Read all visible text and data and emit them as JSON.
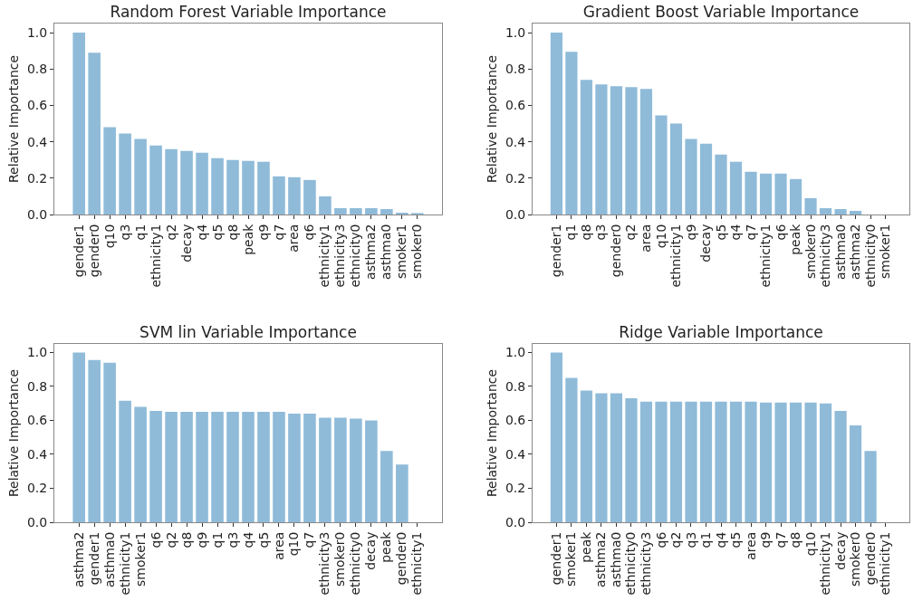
{
  "chart_data": [
    {
      "type": "bar",
      "title": "Random Forest Variable Importance",
      "ylabel": "Relative Importance",
      "categories": [
        "gender1",
        "gender0",
        "q10",
        "q3",
        "q1",
        "ethnicity1",
        "q2",
        "decay",
        "q4",
        "q5",
        "q8",
        "peak",
        "q9",
        "q7",
        "area",
        "q6",
        "ethnicity1",
        "ethnicity3",
        "ethnicity0",
        "asthma2",
        "asthma0",
        "smoker1",
        "smoker0"
      ],
      "values": [
        1.0,
        0.89,
        0.48,
        0.445,
        0.415,
        0.38,
        0.36,
        0.35,
        0.34,
        0.31,
        0.3,
        0.295,
        0.29,
        0.21,
        0.205,
        0.19,
        0.1,
        0.035,
        0.035,
        0.035,
        0.03,
        0.01,
        0.008
      ],
      "color": "#8fbbd9",
      "ylim": [
        0,
        1.05
      ],
      "yticks": [
        {
          "value": 0,
          "label": "0.0"
        },
        {
          "value": 0.2,
          "label": "0.2"
        },
        {
          "value": 0.4,
          "label": "0.4"
        },
        {
          "value": 0.6,
          "label": "0.6"
        },
        {
          "value": 0.8,
          "label": "0.8"
        },
        {
          "value": 1,
          "label": "1.0"
        }
      ],
      "grid": false,
      "legend": false
    },
    {
      "type": "bar",
      "title": "Gradient Boost Variable Importance",
      "ylabel": "Relative Importance",
      "categories": [
        "gender1",
        "q1",
        "q8",
        "q3",
        "gender0",
        "q2",
        "area",
        "q10",
        "ethnicity1",
        "q9",
        "decay",
        "q5",
        "q4",
        "q7",
        "ethnicity1",
        "q6",
        "peak",
        "smoker0",
        "ethnicity3",
        "asthma0",
        "asthma2",
        "ethnicity0",
        "smoker1"
      ],
      "values": [
        1.0,
        0.895,
        0.74,
        0.715,
        0.705,
        0.7,
        0.69,
        0.545,
        0.5,
        0.415,
        0.39,
        0.33,
        0.29,
        0.235,
        0.225,
        0.225,
        0.195,
        0.09,
        0.035,
        0.03,
        0.02,
        0,
        0
      ],
      "color": "#8fbbd9",
      "ylim": [
        0,
        1.05
      ],
      "yticks": [
        {
          "value": 0,
          "label": "0.0"
        },
        {
          "value": 0.2,
          "label": "0.2"
        },
        {
          "value": 0.4,
          "label": "0.4"
        },
        {
          "value": 0.6,
          "label": "0.6"
        },
        {
          "value": 0.8,
          "label": "0.8"
        },
        {
          "value": 1,
          "label": "1.0"
        }
      ],
      "grid": false,
      "legend": false
    },
    {
      "type": "bar",
      "title": "SVM lin Variable Importance",
      "ylabel": "Relative Importance",
      "categories": [
        "asthma2",
        "gender1",
        "asthma0",
        "ethnicity1",
        "smoker1",
        "q6",
        "q2",
        "q8",
        "q9",
        "q1",
        "q3",
        "q4",
        "q5",
        "area",
        "q10",
        "q7",
        "ethnicity3",
        "smoker0",
        "ethnicity0",
        "decay",
        "peak",
        "gender0",
        "ethnicity1"
      ],
      "values": [
        1.0,
        0.955,
        0.94,
        0.715,
        0.68,
        0.655,
        0.65,
        0.65,
        0.65,
        0.65,
        0.65,
        0.65,
        0.65,
        0.65,
        0.64,
        0.64,
        0.615,
        0.615,
        0.61,
        0.6,
        0.42,
        0.34,
        0
      ],
      "color": "#8fbbd9",
      "ylim": [
        0,
        1.05
      ],
      "yticks": [
        {
          "value": 0,
          "label": "0.0"
        },
        {
          "value": 0.2,
          "label": "0.2"
        },
        {
          "value": 0.4,
          "label": "0.4"
        },
        {
          "value": 0.6,
          "label": "0.6"
        },
        {
          "value": 0.8,
          "label": "0.8"
        },
        {
          "value": 1,
          "label": "1.0"
        }
      ],
      "grid": false,
      "legend": false
    },
    {
      "type": "bar",
      "title": "Ridge Variable Importance",
      "ylabel": "Relative Importance",
      "categories": [
        "gender1",
        "smoker1",
        "peak",
        "asthma2",
        "asthma0",
        "ethnicity0",
        "ethnicity3",
        "q6",
        "q2",
        "q3",
        "q1",
        "q4",
        "q5",
        "area",
        "q9",
        "q7",
        "q8",
        "q10",
        "ethnicity1",
        "decay",
        "smoker0",
        "gender0",
        "ethnicity1"
      ],
      "values": [
        1.0,
        0.85,
        0.775,
        0.76,
        0.76,
        0.73,
        0.71,
        0.71,
        0.71,
        0.71,
        0.71,
        0.71,
        0.71,
        0.71,
        0.705,
        0.705,
        0.705,
        0.705,
        0.7,
        0.655,
        0.57,
        0.42,
        0
      ],
      "color": "#8fbbd9",
      "ylim": [
        0,
        1.05
      ],
      "yticks": [
        {
          "value": 0,
          "label": "0.0"
        },
        {
          "value": 0.2,
          "label": "0.2"
        },
        {
          "value": 0.4,
          "label": "0.4"
        },
        {
          "value": 0.6,
          "label": "0.6"
        },
        {
          "value": 0.8,
          "label": "0.8"
        },
        {
          "value": 1,
          "label": "1.0"
        }
      ],
      "grid": false,
      "legend": false
    }
  ]
}
